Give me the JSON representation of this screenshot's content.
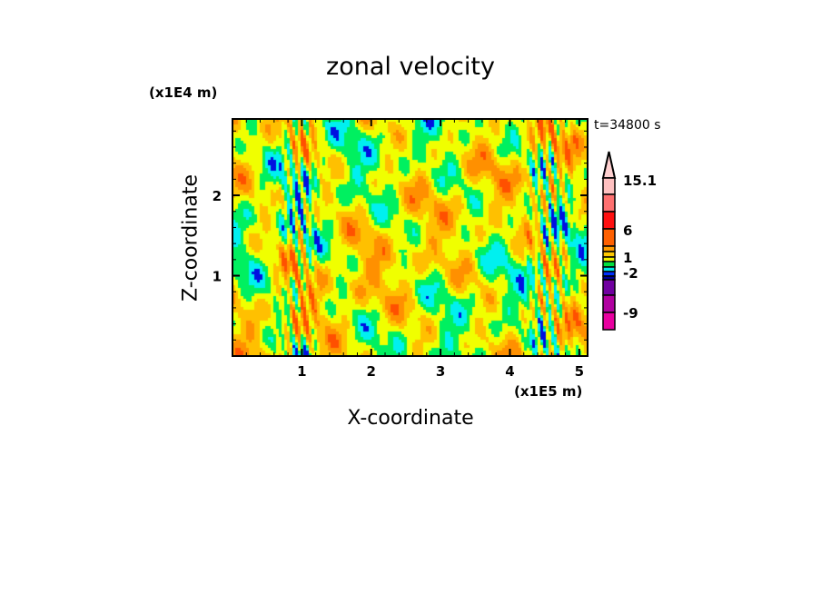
{
  "chart_data": {
    "type": "heatmap",
    "title": "zonal velocity",
    "xlabel": "X-coordinate",
    "ylabel": "Z-coordinate",
    "x_unit": "(x1E5 m)",
    "z_unit": "(x1E4 m)",
    "time_label": "t=34800 s",
    "xlim": [
      0,
      5.12
    ],
    "zlim": [
      0,
      2.95
    ],
    "x_ticks": [
      "1",
      "2",
      "3",
      "4",
      "5"
    ],
    "x_tick_values": [
      1,
      2,
      3,
      4,
      5
    ],
    "z_ticks": [
      "1",
      "2"
    ],
    "z_tick_values": [
      1,
      2
    ],
    "colorbar": {
      "labels": [
        "15.1",
        "6",
        "1",
        "-2",
        "-9"
      ],
      "levels_top_to_bottom": [
        {
          "color": "#ffd0d0"
        },
        {
          "color": "#ffc0c0"
        },
        {
          "color": "#ff7070"
        },
        {
          "color": "#ff1010"
        },
        {
          "color": "#ff6000"
        },
        {
          "color": "#ff9c00"
        },
        {
          "color": "#ffc800"
        },
        {
          "color": "#f0f000"
        },
        {
          "color": "#00e040"
        },
        {
          "color": "#00e8e8"
        },
        {
          "color": "#0030ff"
        },
        {
          "color": "#000099"
        },
        {
          "color": "#7000a0"
        },
        {
          "color": "#b000a0"
        },
        {
          "color": "#e800a0"
        }
      ]
    },
    "field_palette": [
      "#0010e0",
      "#00f0f0",
      "#00f060",
      "#f0ff00",
      "#ffc000",
      "#ff9000",
      "#ff5000"
    ]
  }
}
